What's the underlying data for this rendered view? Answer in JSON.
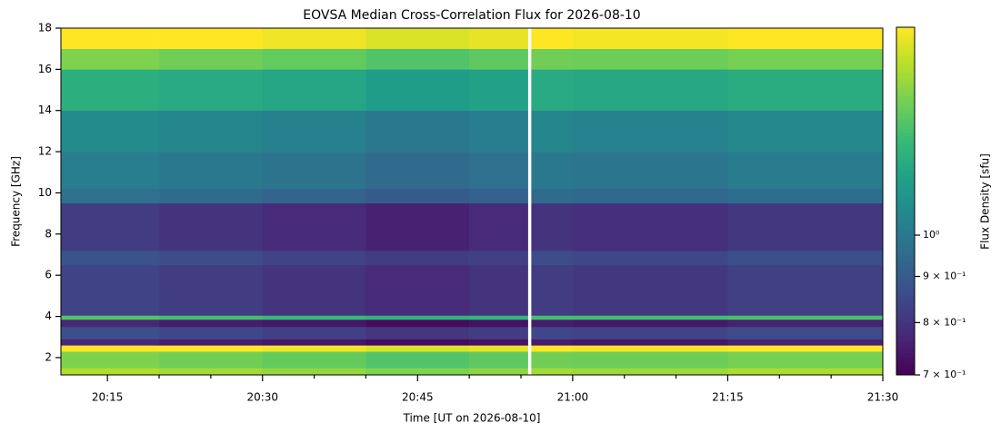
{
  "chart_data": {
    "type": "heatmap",
    "title": "EOVSA Median Cross-Correlation Flux for 2026-08-10",
    "x_label": "Time [UT on 2026-08-10]",
    "y_label": "Frequency [GHz]",
    "colorbar_label": "Flux Density [sfu]",
    "colormap": "viridis",
    "color_scale": "log",
    "x_edges": [
      "20:10:30",
      "20:20",
      "20:30",
      "20:40",
      "20:50",
      "20:55:40",
      "20:56",
      "21:00",
      "21:15",
      "21:30"
    ],
    "y_edges": [
      1.16,
      1.5,
      2.3,
      2.6,
      2.9,
      3.5,
      3.85,
      4.05,
      6.5,
      7.2,
      9.5,
      10.2,
      12,
      14,
      16,
      17,
      18
    ],
    "z": [
      [
        1.53,
        1.5,
        1.47,
        1.43,
        1.46,
        null,
        1.5,
        1.49,
        1.52
      ],
      [
        1.43,
        1.4,
        1.37,
        1.33,
        1.36,
        null,
        1.4,
        1.39,
        1.41
      ],
      [
        1.7,
        1.7,
        1.67,
        1.62,
        1.65,
        null,
        1.7,
        1.68,
        1.7
      ],
      [
        0.77,
        0.75,
        0.74,
        0.72,
        0.73,
        null,
        0.75,
        0.74,
        0.76
      ],
      [
        0.87,
        0.85,
        0.83,
        0.81,
        0.82,
        null,
        0.85,
        0.84,
        0.86
      ],
      [
        0.77,
        0.75,
        0.74,
        0.72,
        0.73,
        null,
        0.75,
        0.74,
        0.76
      ],
      [
        1.33,
        1.3,
        1.27,
        1.24,
        1.26,
        null,
        1.3,
        1.29,
        1.31
      ],
      [
        0.84,
        0.82,
        0.8,
        0.78,
        0.8,
        null,
        0.82,
        0.81,
        0.83
      ],
      [
        0.88,
        0.86,
        0.84,
        0.82,
        0.83,
        null,
        0.86,
        0.85,
        0.87
      ],
      [
        0.82,
        0.8,
        0.78,
        0.76,
        0.78,
        null,
        0.8,
        0.79,
        0.81
      ],
      [
        0.97,
        0.95,
        0.93,
        0.9,
        0.92,
        null,
        0.95,
        0.94,
        0.96
      ],
      [
        1.02,
        1.0,
        0.98,
        0.95,
        0.97,
        null,
        1.0,
        0.99,
        1.01
      ],
      [
        1.07,
        1.05,
        1.03,
        1.0,
        1.02,
        null,
        1.05,
        1.04,
        1.06
      ],
      [
        1.22,
        1.2,
        1.18,
        1.14,
        1.16,
        null,
        1.2,
        1.19,
        1.21
      ],
      [
        1.43,
        1.4,
        1.37,
        1.33,
        1.36,
        null,
        1.4,
        1.39,
        1.41
      ],
      [
        1.7,
        1.7,
        1.67,
        1.62,
        1.65,
        null,
        1.7,
        1.68,
        1.7
      ]
    ],
    "xlim": [
      "20:10:30",
      "21:30"
    ],
    "xticks": [
      "20:15",
      "20:30",
      "20:45",
      "21:00",
      "21:15",
      "21:30"
    ],
    "xminorticks": [
      "20:20",
      "20:25",
      "20:35",
      "20:40",
      "20:50",
      "20:55",
      "21:05",
      "21:10",
      "21:20",
      "21:25"
    ],
    "ylim": [
      1.16,
      18
    ],
    "yticks": [
      2,
      4,
      6,
      8,
      10,
      12,
      14,
      16,
      18
    ],
    "clim": [
      0.7,
      1.7
    ],
    "cticks": [
      {
        "value": 0.7,
        "label": "7 × 10⁻¹"
      },
      {
        "value": 0.8,
        "label": "8 × 10⁻¹"
      },
      {
        "value": 0.9,
        "label": "9 × 10⁻¹"
      },
      {
        "value": 1,
        "label": "10⁰"
      }
    ]
  }
}
